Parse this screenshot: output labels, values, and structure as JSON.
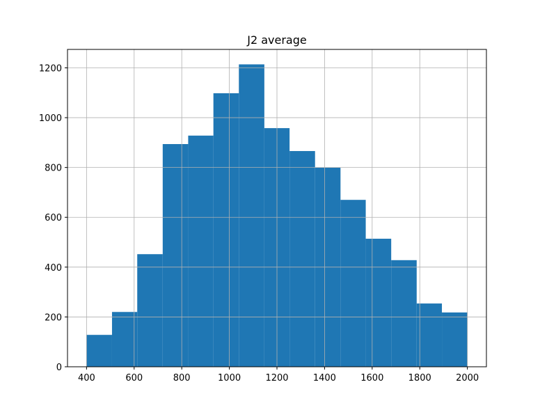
{
  "chart_data": {
    "type": "bar",
    "title": "J2 average",
    "xlabel": "",
    "ylabel": "",
    "bin_edges": [
      400,
      507,
      613,
      720,
      827,
      933,
      1040,
      1147,
      1253,
      1360,
      1467,
      1573,
      1680,
      1787,
      1893,
      2000
    ],
    "values": [
      128,
      220,
      452,
      894,
      928,
      1098,
      1214,
      958,
      866,
      800,
      670,
      514,
      428,
      254,
      218
    ],
    "xlim": [
      320,
      2080
    ],
    "ylim": [
      0,
      1274
    ],
    "xticks": [
      400,
      600,
      800,
      1000,
      1200,
      1400,
      1600,
      1800,
      2000
    ],
    "yticks": [
      0,
      200,
      400,
      600,
      800,
      1000,
      1200
    ],
    "grid": true,
    "bar_color": "#1f77b4",
    "grid_color": "#b0b0b0"
  }
}
